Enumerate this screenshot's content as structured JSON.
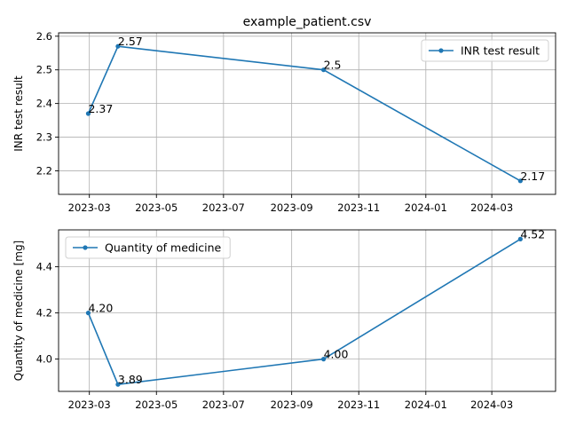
{
  "figure_title": "example_patient.csv",
  "chart_data": [
    {
      "type": "line",
      "title": "example_patient.csv",
      "xlabel": "",
      "ylabel": "INR test result",
      "x": [
        "2023-02-28",
        "2023-03-27",
        "2023-09-30",
        "2024-03-27"
      ],
      "series": [
        {
          "name": "INR test result",
          "values": [
            2.37,
            2.57,
            2.5,
            2.17
          ],
          "color": "#1f77b4"
        }
      ],
      "data_labels": [
        "2.37",
        "2.57",
        "2.5",
        "2.17"
      ],
      "xticks": [
        "2023-03",
        "2023-05",
        "2023-07",
        "2023-09",
        "2023-11",
        "2024-01",
        "2024-03"
      ],
      "yticks": [
        "2.2",
        "2.3",
        "2.4",
        "2.5",
        "2.6"
      ],
      "ylim": [
        2.13,
        2.61
      ],
      "xlim": [
        "2023-02-01",
        "2024-04-28"
      ],
      "grid": true,
      "legend": "top-right"
    },
    {
      "type": "line",
      "title": "",
      "xlabel": "",
      "ylabel": "Quantity of medicine [mg]",
      "x": [
        "2023-02-28",
        "2023-03-27",
        "2023-09-30",
        "2024-03-27"
      ],
      "series": [
        {
          "name": "Quantity of medicine",
          "values": [
            4.2,
            3.89,
            4.0,
            4.52
          ],
          "color": "#1f77b4"
        }
      ],
      "data_labels": [
        "4.20",
        "3.89",
        "4.00",
        "4.52"
      ],
      "xticks": [
        "2023-03",
        "2023-05",
        "2023-07",
        "2023-09",
        "2023-11",
        "2024-01",
        "2024-03"
      ],
      "yticks": [
        "4.0",
        "4.2",
        "4.4"
      ],
      "ylim": [
        3.86,
        4.56
      ],
      "xlim": [
        "2023-02-01",
        "2024-04-28"
      ],
      "grid": true,
      "legend": "top-left"
    }
  ]
}
